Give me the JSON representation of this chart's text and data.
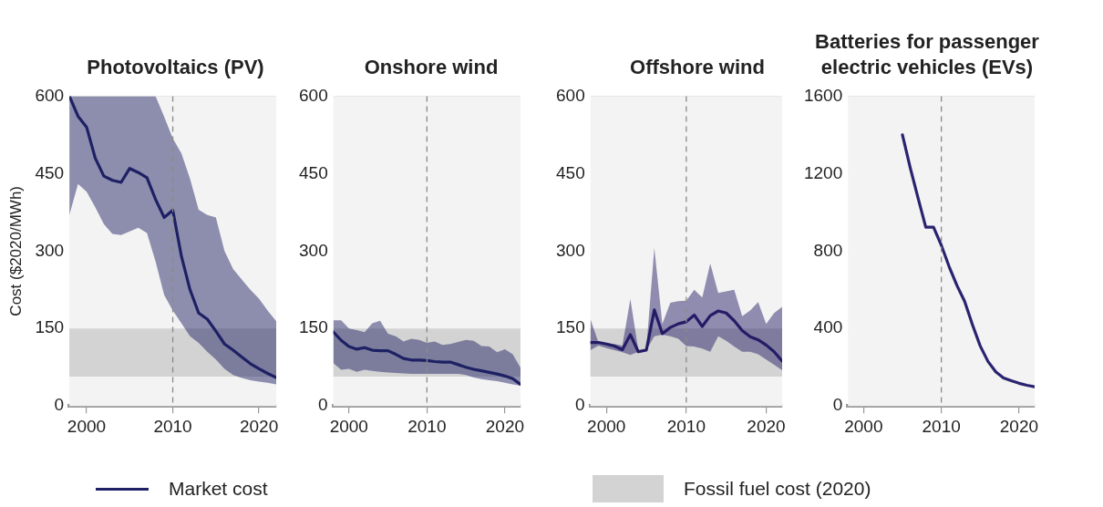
{
  "chart_data": [
    {
      "type": "line",
      "title": "Photovoltaics (PV)",
      "ylabel": "Cost ($2020/MWh)",
      "x": [
        1998,
        1999,
        2000,
        2001,
        2002,
        2003,
        2004,
        2005,
        2006,
        2007,
        2008,
        2009,
        2010,
        2011,
        2012,
        2013,
        2014,
        2015,
        2016,
        2017,
        2018,
        2019,
        2020,
        2021,
        2022
      ],
      "series": [
        {
          "name": "Market cost",
          "color": "#1d2063",
          "values": [
            600,
            561,
            540,
            480,
            445,
            437,
            433,
            460,
            452,
            442,
            400,
            365,
            379,
            290,
            225,
            180,
            168,
            145,
            120,
            108,
            95,
            82,
            72,
            63,
            55
          ],
          "lower": [
            370,
            430,
            415,
            385,
            352,
            333,
            331,
            338,
            345,
            335,
            280,
            215,
            185,
            160,
            135,
            122,
            105,
            90,
            72,
            60,
            54,
            50,
            47,
            45,
            42
          ],
          "upper": [
            600,
            600,
            600,
            600,
            600,
            600,
            600,
            600,
            600,
            600,
            600,
            560,
            518,
            489,
            440,
            380,
            370,
            365,
            300,
            265,
            245,
            225,
            208,
            185,
            164
          ]
        }
      ],
      "xlim": [
        1998,
        2022
      ],
      "xticks": [
        2000,
        2010,
        2020
      ],
      "ylim": [
        0,
        600
      ],
      "yticks": [
        0,
        150,
        300,
        450,
        600
      ],
      "ref_lines": [
        {
          "axis": "x",
          "value": 2010,
          "line_style": "dashed",
          "color": "#8a8a8a"
        }
      ],
      "bands": [
        {
          "axis": "y",
          "from": 57,
          "to": 150,
          "label": "Fossil fuel cost (2020)",
          "color": "#d3d3d3"
        }
      ],
      "grid": "y",
      "legend": "bottom"
    },
    {
      "type": "line",
      "title": "Onshore wind",
      "x": [
        1998,
        1999,
        2000,
        2001,
        2002,
        2003,
        2004,
        2005,
        2006,
        2007,
        2008,
        2009,
        2010,
        2011,
        2012,
        2013,
        2014,
        2015,
        2016,
        2017,
        2018,
        2019,
        2020,
        2021,
        2022
      ],
      "series": [
        {
          "color": "#1d2063",
          "values": [
            143,
            127,
            115,
            110,
            113,
            108,
            107,
            107,
            100,
            92,
            89,
            89,
            88,
            86,
            85,
            85,
            80,
            75,
            71,
            68,
            65,
            62,
            58,
            53,
            42
          ],
          "lower": [
            83,
            70,
            72,
            66,
            70,
            68,
            66,
            65,
            64,
            63,
            62,
            62,
            62,
            62,
            62,
            62,
            62,
            60,
            55,
            52,
            50,
            48,
            45,
            42,
            39
          ],
          "upper": [
            166,
            166,
            150,
            147,
            143,
            160,
            165,
            140,
            135,
            125,
            130,
            128,
            122,
            125,
            118,
            120,
            124,
            128,
            126,
            116,
            115,
            104,
            110,
            100,
            74
          ]
        }
      ],
      "xlim": [
        1998,
        2022
      ],
      "xticks": [
        2000,
        2010,
        2020
      ],
      "ylim": [
        0,
        600
      ],
      "yticks": [
        0,
        150,
        300,
        450,
        600
      ],
      "ref_lines": [
        {
          "axis": "x",
          "value": 2010,
          "line_style": "dashed",
          "color": "#8a8a8a"
        }
      ],
      "bands": [
        {
          "axis": "y",
          "from": 57,
          "to": 150,
          "color": "#d3d3d3"
        }
      ],
      "grid": "y"
    },
    {
      "type": "line",
      "title": "Offshore wind",
      "x": [
        1998,
        1999,
        2000,
        2001,
        2002,
        2003,
        2004,
        2005,
        2006,
        2007,
        2008,
        2009,
        2010,
        2011,
        2012,
        2013,
        2014,
        2015,
        2016,
        2017,
        2018,
        2019,
        2020,
        2021,
        2022
      ],
      "series": [
        {
          "color": "#231c66",
          "values": [
            123,
            123,
            120,
            116,
            109,
            138,
            105,
            108,
            186,
            140,
            152,
            159,
            163,
            176,
            154,
            175,
            184,
            180,
            165,
            146,
            134,
            128,
            118,
            105,
            87
          ],
          "lower": [
            108,
            117,
            112,
            108,
            104,
            99,
            105,
            108,
            135,
            138,
            135,
            130,
            116,
            115,
            111,
            105,
            135,
            126,
            115,
            105,
            105,
            100,
            90,
            80,
            69
          ],
          "upper": [
            168,
            123,
            122,
            120,
            117,
            207,
            108,
            111,
            306,
            159,
            200,
            203,
            204,
            225,
            210,
            276,
            219,
            222,
            225,
            174,
            185,
            201,
            159,
            180,
            192
          ]
        }
      ],
      "xlim": [
        1998,
        2022
      ],
      "xticks": [
        2000,
        2010,
        2020
      ],
      "ylim": [
        0,
        600
      ],
      "yticks": [
        0,
        150,
        300,
        450,
        600
      ],
      "ref_lines": [
        {
          "axis": "x",
          "value": 2010,
          "line_style": "dashed",
          "color": "#8a8a8a"
        }
      ],
      "bands": [
        {
          "axis": "y",
          "from": 57,
          "to": 150,
          "color": "#d3d3d3"
        }
      ],
      "grid": "y"
    },
    {
      "type": "line",
      "title": "Batteries for passenger electric vehicles (EVs)",
      "x": [
        2005,
        2006,
        2007,
        2008,
        2009,
        2010,
        2011,
        2012,
        2013,
        2014,
        2015,
        2016,
        2017,
        2018,
        2019,
        2020,
        2021,
        2022
      ],
      "series": [
        {
          "color": "#2a2470",
          "values": [
            1400,
            1230,
            1075,
            923,
            923,
            830,
            720,
            623,
            540,
            420,
            310,
            230,
            176,
            145,
            130,
            117,
            107,
            99
          ]
        }
      ],
      "xlim": [
        1998,
        2022
      ],
      "xticks": [
        2000,
        2010,
        2020
      ],
      "ylim": [
        0,
        1600
      ],
      "yticks": [
        0,
        400,
        800,
        1200,
        1600
      ],
      "ref_lines": [
        {
          "axis": "x",
          "value": 2010,
          "line_style": "dashed",
          "color": "#8a8a8a"
        }
      ],
      "grid": "y"
    }
  ]
}
